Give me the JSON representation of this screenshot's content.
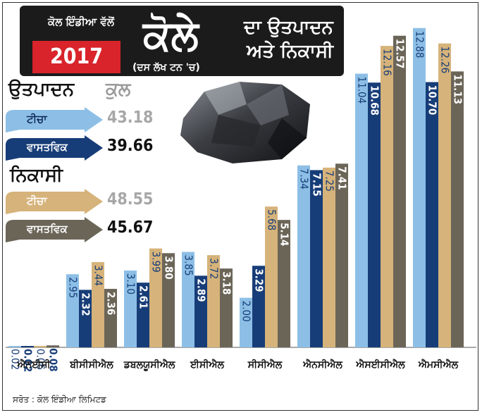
{
  "header": {
    "subtitle": "ਕੋਲ ਇੰਡੀਆ ਵੱਲੋਂ",
    "year": "2017",
    "title_big": "ਕੋਲੇ",
    "title_right_line1": "ਦਾ ਉਤਪਾਦਨ",
    "title_right_line2": "ਅਤੇ ਨਿਕਾਸੀ",
    "unit": "(ਦਸ ਲੱਖ ਟਨ 'ਚ)"
  },
  "totals": {
    "production": {
      "title": "ਉਤਪਾਦਨ",
      "total_label": "ਕੁਲ",
      "target_label": "ਟੀਚਾ",
      "target_value": "43.18",
      "actual_label": "ਵਾਸਤਵਿਕ",
      "actual_value": "39.66"
    },
    "offtake": {
      "title": "ਨਿਕਾਸੀ",
      "target_label": "ਟੀਚਾ",
      "target_value": "48.55",
      "actual_label": "ਵਾਸਤਵਿਕ",
      "actual_value": "45.67"
    }
  },
  "colors": {
    "production_target": "#8dbfe6",
    "production_actual": "#173d78",
    "offtake_target": "#d6b37a",
    "offtake_actual": "#6b6558",
    "banner": "#1b1b1b",
    "year_box": "#d8242a"
  },
  "chart_data": {
    "type": "bar",
    "categories": [
      "ਐਨਈਸੀ",
      "ਬੀਸੀਸੀਐਲ",
      "ਡਬਲਯੂਸੀਐਲ",
      "ਈਸੀਐਲ",
      "ਸੀਸੀਐਲ",
      "ਐਨਸੀਐਲ",
      "ਐਸਈਸੀਐਲ",
      "ਐਮਸੀਐਲ"
    ],
    "series": [
      {
        "name": "ਉਤਪਾਦਨ ਟੀਚਾ",
        "values": [
          0.02,
          2.95,
          3.1,
          3.85,
          2.0,
          7.34,
          11.04,
          12.88
        ]
      },
      {
        "name": "ਉਤਪਾਦਨ ਵਾਸਤਵਿਕ",
        "values": [
          0.02,
          2.32,
          2.61,
          2.89,
          3.29,
          7.15,
          10.68,
          10.7
        ]
      },
      {
        "name": "ਨਿਕਾਸੀ ਟੀਚਾ",
        "values": [
          0.06,
          3.44,
          3.99,
          3.72,
          5.68,
          7.25,
          12.16,
          12.26
        ]
      },
      {
        "name": "ਨਿਕਾਸੀ ਵਾਸਤਵਿਕ",
        "values": [
          0.08,
          2.36,
          3.8,
          3.18,
          5.14,
          7.41,
          12.57,
          11.13
        ]
      }
    ],
    "ylim": [
      0,
      13.5
    ]
  },
  "source": "ਸਰੋਤ : ਕੋਲ ਇੰਡੀਆ ਲਿਮਿਟਡ"
}
